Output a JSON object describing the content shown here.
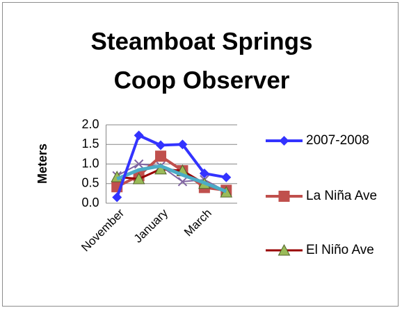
{
  "chart_data": {
    "type": "line",
    "title": [
      "Steamboat Springs",
      "Coop Observer"
    ],
    "y_label": "Meters",
    "categories": [
      "November",
      null,
      "January",
      null,
      "March",
      null
    ],
    "ylim": [
      0,
      2
    ],
    "yticks": [
      {
        "value": 0,
        "label": "0.0"
      },
      0.5,
      {
        "value": 1,
        "label": "1.0"
      },
      1.5,
      {
        "value": 2,
        "label": "2.0"
      }
    ],
    "grid": true,
    "legend": "right",
    "series": [
      {
        "name": "2007-2008",
        "color": "#3333ff",
        "marker": "diamond",
        "values": [
          0.15,
          1.73,
          1.48,
          1.5,
          0.76,
          0.66
        ]
      },
      {
        "name": "La Niña Ave",
        "color": "#c0504d",
        "marker": "square",
        "values": [
          0.42,
          0.7,
          1.2,
          0.83,
          0.4,
          0.33
        ]
      },
      {
        "name": "El Niño Ave",
        "color": "#990000",
        "marker": "triangle",
        "values": [
          0.67,
          0.62,
          0.87,
          0.83,
          0.5,
          0.28
        ]
      },
      {
        "color": "#8064a2",
        "marker": "x",
        "values": [
          0.7,
          1.0,
          0.95,
          0.55,
          0.6,
          0.3
        ]
      },
      {
        "color": "#4bacc6",
        "values": [
          0.62,
          0.85,
          0.95,
          0.72,
          0.52,
          0.3
        ]
      }
    ]
  }
}
